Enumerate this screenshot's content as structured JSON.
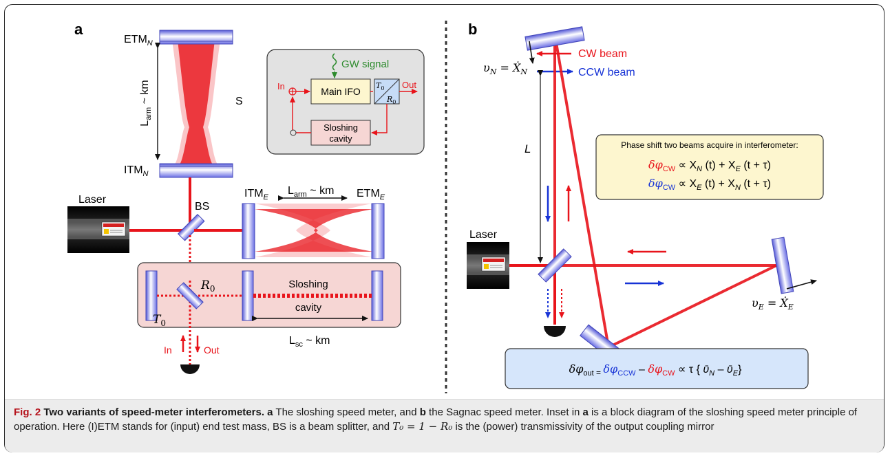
{
  "panel_a": {
    "label": "a",
    "etm_n": "ETM",
    "etm_n_sub": "N",
    "itm_n": "ITM",
    "itm_n_sub": "N",
    "l_arm_vertical": "L",
    "l_arm_vertical_sub": "arm",
    "l_arm_vertical_tail": " ~ km",
    "s_label": "S",
    "laser": "Laser",
    "bs": "BS",
    "itm_e": "ITM",
    "itm_e_sub": "E",
    "etm_e": "ETM",
    "etm_e_sub": "E",
    "l_arm_horizontal": "L",
    "l_arm_horizontal_sub": "arm",
    "l_arm_horizontal_tail": " ~ km",
    "r0": "R",
    "r0_sub": "0",
    "t0": "T",
    "t0_sub": "0",
    "sloshing_cavity_1": "Sloshing",
    "sloshing_cavity_2": "cavity",
    "l_sc": "L",
    "l_sc_sub": "sc",
    "l_sc_tail": " ~ km",
    "in": "In",
    "out": "Out",
    "inset": {
      "gw_signal": "GW signal",
      "in": "In",
      "main_ifo": "Main IFO",
      "t0": "T",
      "t0_sub": "0",
      "r0": "R",
      "r0_sub": "0",
      "out": "Out",
      "sloshing_1": "Sloshing",
      "sloshing_2": "cavity"
    }
  },
  "panel_b": {
    "label": "b",
    "cw_beam": "CW beam",
    "ccw_beam": "CCW beam",
    "v_n": "υ",
    "v_n_sub": "N",
    "v_n_eq": " = ",
    "v_n_x": "Ẋ",
    "v_n_x_sub": "N",
    "l": "L",
    "laser": "Laser",
    "v_e": "υ",
    "v_e_sub": "E",
    "v_e_eq": " = ",
    "v_e_x": "Ẋ",
    "v_e_x_sub": "E",
    "phase_box_title": "Phase shift two beams acquire in interferometer:",
    "eq1": {
      "dphi": "δφ",
      "sub": "CW",
      "rest": " ∝ X",
      "n": "N",
      "t1": " (t) + X",
      "e": "E",
      "t2": " (t + τ)"
    },
    "eq2": {
      "dphi": "δφ",
      "sub": "CW",
      "rest": " ∝ X",
      "e": "E",
      "t1": " (t) + X",
      "n": "N",
      "t2": " (t + τ)"
    },
    "out_eq": {
      "dphi": "δφ",
      "out": "out",
      "eq": " = ",
      "ccw": "δφ",
      "ccw_sub": "CCW",
      "minus": " – ",
      "cw": "δφ",
      "cw_sub": "CW",
      "prop": " ∝ τ { ",
      "vn": "ῡ",
      "vn_sub": "N",
      "mid": " – ",
      "ve": "ῡ",
      "ve_sub": "E",
      "end": "}"
    }
  },
  "caption": {
    "fig_label": "Fig. 2",
    "title": " Two variants of speed-meter interferometers.",
    "a": " a",
    "t1": " The sloshing speed meter, and ",
    "b": "b",
    "t2": " the Sagnac speed meter. Inset in ",
    "a2": "a",
    "t3": " is a block diagram of the sloshing speed meter principle of operation. Here (I)ETM stands for (input) end test mass, BS is a beam splitter, and ",
    "formula": "T₀ = 1 − R₀",
    "t4": " is the (power) transmissivity of the output coupling mirror"
  },
  "colors": {
    "beam": "#e8141b",
    "mirror": "#7c7ff0",
    "ccw_arrow": "#1733d6",
    "gw_green": "#2e8b2e",
    "inset_bg": "#e2e2e2",
    "slosh_bg": "#f6d6d4",
    "phase_bg": "#fdf6cf",
    "out_bg": "#d6e6fb",
    "caption_bg": "#ececec",
    "fig_red": "#b5121b"
  }
}
